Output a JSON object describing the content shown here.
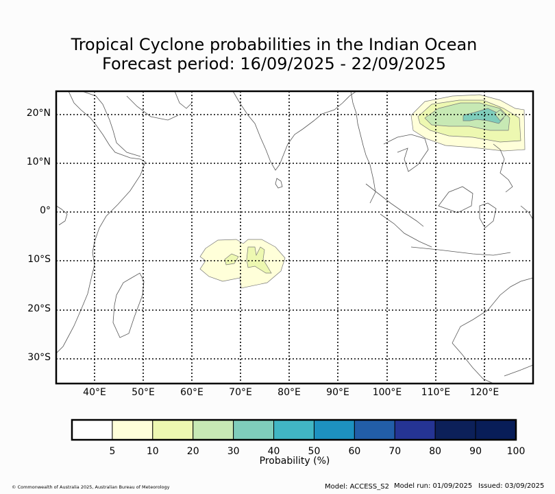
{
  "title_line1": "Tropical Cyclone probabilities in the Indian Ocean",
  "title_line2": "Forecast period: 16/09/2025 - 22/09/2025",
  "lat_labels": [
    "20°N",
    "10°N",
    "0°",
    "10°S",
    "20°S",
    "30°S"
  ],
  "lon_labels": [
    "40°E",
    "50°E",
    "60°E",
    "70°E",
    "80°E",
    "90°E",
    "100°E",
    "110°E",
    "120°E"
  ],
  "colorbar": {
    "label": "Probability (%)",
    "ticks": [
      "5",
      "10",
      "20",
      "30",
      "40",
      "50",
      "60",
      "70",
      "80",
      "90",
      "100"
    ],
    "colors": [
      "#ffffff",
      "#ffffd9",
      "#edf8b1",
      "#c7e9b4",
      "#7fcdbb",
      "#41b6c4",
      "#1d91c0",
      "#225ea8",
      "#253494",
      "#0c2059",
      "#081d58"
    ]
  },
  "footer": {
    "copyright": "© Commonwealth of Australia 2025, Australian Bureau of Meteorology",
    "model": "Model: ACCESS_S2",
    "model_run": "Model run: 01/09/2025",
    "issued": "Issued: 03/09/2025"
  }
}
